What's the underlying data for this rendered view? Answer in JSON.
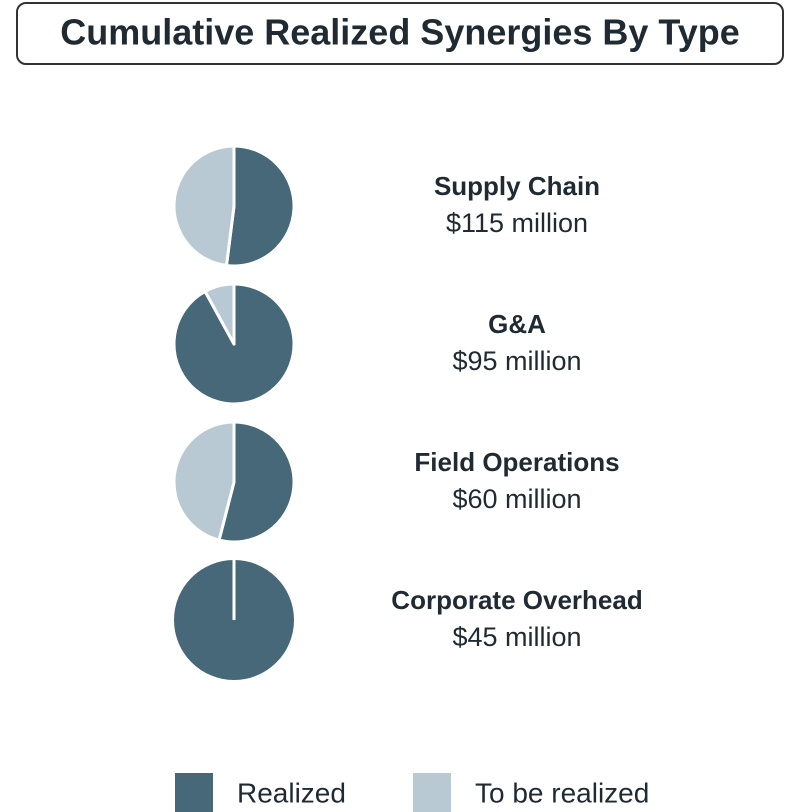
{
  "chart_data": {
    "type": "pie",
    "title": "Cumulative Realized Synergies By Type",
    "categories": [
      "Supply Chain",
      "G&A",
      "Field Operations",
      "Corporate Overhead"
    ],
    "amounts": [
      "$115 million",
      "$95 million",
      "$60 million",
      "$45 million"
    ],
    "series": [
      {
        "name": "Realized",
        "color": "#476878",
        "values": [
          52,
          92,
          54,
          100
        ]
      },
      {
        "name": "To be realized",
        "color": "#b8c9d3",
        "values": [
          48,
          8,
          46,
          0
        ]
      }
    ]
  }
}
